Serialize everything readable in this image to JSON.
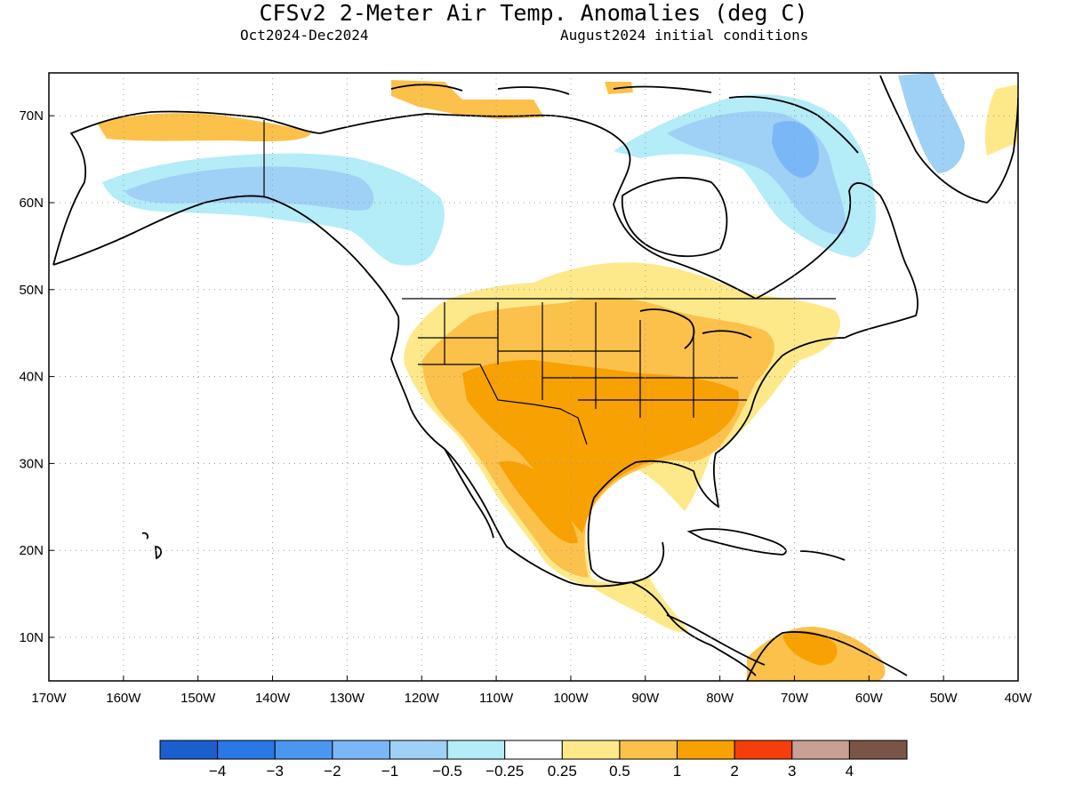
{
  "header": {
    "title": "CFSv2 2-Meter Air Temp. Anomalies (deg C)",
    "period": "Oct2024-Dec2024",
    "initial_conditions": "August2024 initial conditions"
  },
  "map": {
    "x_axis_labels": [
      "170W",
      "160W",
      "150W",
      "140W",
      "130W",
      "120W",
      "110W",
      "100W",
      "90W",
      "80W",
      "70W",
      "60W",
      "50W",
      "40W"
    ],
    "y_axis_labels": [
      "10N",
      "20N",
      "30N",
      "40N",
      "50N",
      "60N",
      "70N"
    ],
    "grid": true,
    "region": "North America"
  },
  "colorbar": {
    "labels": [
      "−4",
      "−3",
      "−2",
      "−1",
      "−0.5",
      "−0.25",
      "0.25",
      "0.5",
      "1",
      "2",
      "3",
      "4"
    ],
    "colors": [
      "#1a5fcc",
      "#2a78e6",
      "#4a97f0",
      "#7ab7f6",
      "#9fd0f6",
      "#b4ecf7",
      "#ffffff",
      "#fde98a",
      "#fbc14b",
      "#f7a102",
      "#f63d0c",
      "#c8a094",
      "#7a5547"
    ]
  },
  "palette": {
    "cold_light": "#b4ecf7",
    "cold_medium": "#9fd0f6",
    "cold_strong": "#7ab7f6",
    "warm_light": "#fde98a",
    "warm_medium": "#fbc14b",
    "warm_strong": "#f7a102"
  }
}
